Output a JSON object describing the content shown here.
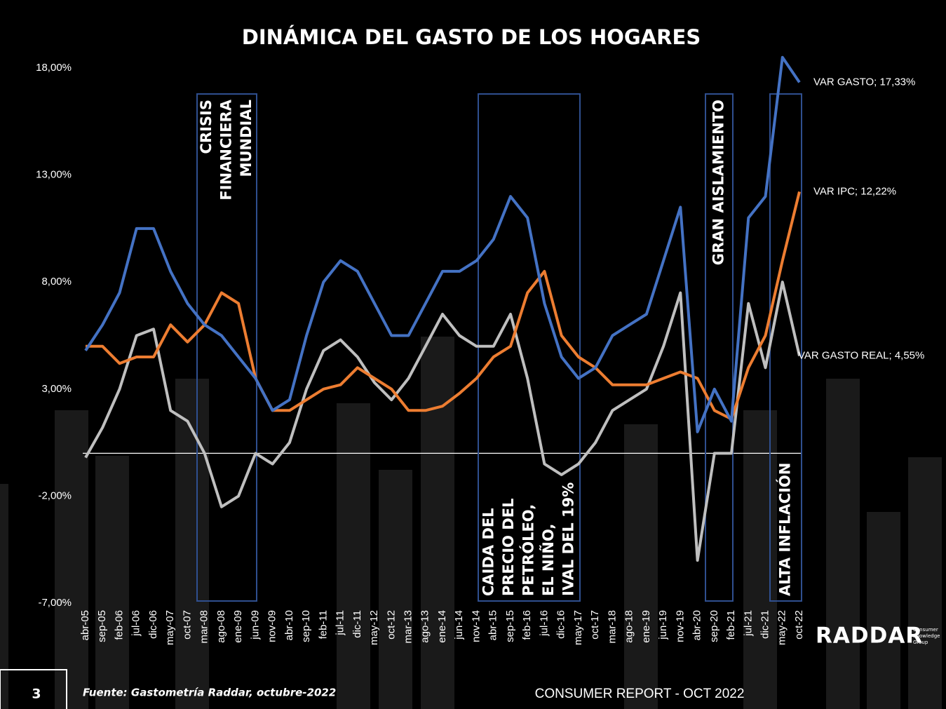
{
  "chart_data": {
    "type": "line",
    "title": "DINÁMICA DEL GASTO DE LOS HOGARES",
    "categories": [
      "abr-05",
      "sep-05",
      "feb-06",
      "jul-06",
      "dic-06",
      "may-07",
      "oct-07",
      "mar-08",
      "ago-08",
      "ene-09",
      "jun-09",
      "nov-09",
      "abr-10",
      "sep-10",
      "feb-11",
      "jul-11",
      "dic-11",
      "may-12",
      "oct-12",
      "mar-13",
      "ago-13",
      "ene-14",
      "jun-14",
      "nov-14",
      "abr-15",
      "sep-15",
      "feb-16",
      "jul-16",
      "dic-16",
      "may-17",
      "oct-17",
      "mar-18",
      "ago-18",
      "ene-19",
      "jun-19",
      "nov-19",
      "abr-20",
      "sep-20",
      "feb-21",
      "jul-21",
      "dic-21",
      "may-22",
      "oct-22"
    ],
    "series": [
      {
        "name": "VAR GASTO",
        "color": "#4472c4",
        "values": [
          4.8,
          6.0,
          7.5,
          10.5,
          10.5,
          8.5,
          7.0,
          6.0,
          5.5,
          4.5,
          3.5,
          2.0,
          2.5,
          5.5,
          8.0,
          9.0,
          8.5,
          7.0,
          5.5,
          5.5,
          7.0,
          8.5,
          8.5,
          9.0,
          10.0,
          12.0,
          11.0,
          7.0,
          4.5,
          3.5,
          4.0,
          5.5,
          6.0,
          6.5,
          9.0,
          11.5,
          1.0,
          3.0,
          1.5,
          11.0,
          12.0,
          18.5,
          17.33
        ],
        "value_labels": [
          null,
          null,
          null,
          null,
          null,
          null,
          null,
          null,
          null,
          null,
          null,
          null,
          null,
          null,
          null,
          null,
          null,
          null,
          null,
          null,
          null,
          null,
          null,
          null,
          null,
          null,
          null,
          null,
          null,
          null,
          null,
          null,
          null,
          null,
          null,
          null,
          null,
          null,
          null,
          null,
          null,
          null,
          "VAR GASTO; 17,33%"
        ]
      },
      {
        "name": "VAR IPC",
        "color": "#ed7d31",
        "values": [
          5.0,
          5.0,
          4.2,
          4.5,
          4.5,
          6.0,
          5.2,
          6.0,
          7.5,
          7.0,
          3.5,
          2.0,
          2.0,
          2.5,
          3.0,
          3.2,
          4.0,
          3.5,
          3.0,
          2.0,
          2.0,
          2.2,
          2.8,
          3.5,
          4.5,
          5.0,
          7.5,
          8.5,
          5.5,
          4.5,
          4.0,
          3.2,
          3.2,
          3.2,
          3.5,
          3.8,
          3.5,
          2.0,
          1.6,
          4.0,
          5.5,
          9.0,
          12.22
        ],
        "value_labels": [
          null,
          null,
          null,
          null,
          null,
          null,
          null,
          null,
          null,
          null,
          null,
          null,
          null,
          null,
          null,
          null,
          null,
          null,
          null,
          null,
          null,
          null,
          null,
          null,
          null,
          null,
          null,
          null,
          null,
          null,
          null,
          null,
          null,
          null,
          null,
          null,
          null,
          null,
          null,
          null,
          null,
          null,
          "VAR IPC; 12,22%"
        ]
      },
      {
        "name": "VAR GASTO REAL",
        "color": "#bfbfbf",
        "values": [
          -0.2,
          1.2,
          3.0,
          5.5,
          5.8,
          2.0,
          1.5,
          0.0,
          -2.5,
          -2.0,
          0.0,
          -0.5,
          0.5,
          3.0,
          4.8,
          5.3,
          4.5,
          3.3,
          2.5,
          3.5,
          5.0,
          6.5,
          5.5,
          5.0,
          5.0,
          6.5,
          3.5,
          -0.5,
          -1.0,
          -0.5,
          0.5,
          2.0,
          2.5,
          3.0,
          5.0,
          7.5,
          -5.0,
          0.0,
          0.0,
          7.0,
          4.0,
          8.0,
          4.55
        ],
        "value_labels": [
          null,
          null,
          null,
          null,
          null,
          null,
          null,
          null,
          null,
          null,
          null,
          null,
          null,
          null,
          null,
          null,
          null,
          null,
          null,
          null,
          null,
          null,
          null,
          null,
          null,
          null,
          null,
          null,
          null,
          null,
          null,
          null,
          null,
          null,
          null,
          null,
          null,
          null,
          null,
          null,
          null,
          null,
          "VAR GASTO REAL; 4,55%"
        ]
      }
    ],
    "ylim": [
      -7,
      18
    ],
    "yticks": [
      {
        "value": -7,
        "label": "-7,00%"
      },
      {
        "value": -2,
        "label": "-2,00%"
      },
      {
        "value": 3,
        "label": "3,00%"
      },
      {
        "value": 8,
        "label": "8,00%"
      },
      {
        "value": 13,
        "label": "13,00%"
      },
      {
        "value": 18,
        "label": "18,00%"
      }
    ],
    "annotations": [
      {
        "lines": [
          "CRISIS",
          "FINANCIERA",
          "MUNDIAL"
        ]
      },
      {
        "lines": [
          "CAIDA DEL",
          "PRECIO DEL",
          "PETRÓLEO,",
          "EL NIÑO,",
          "IVAL DEL 19%"
        ]
      },
      {
        "lines": [
          "GRAN AISLAMIENTO"
        ]
      },
      {
        "lines": [
          "ALTA INFLACIÓN"
        ]
      }
    ]
  },
  "footer": {
    "page": "3",
    "source": "Fuente: Gastometría Raddar, octubre-2022",
    "report": "CONSUMER REPORT - OCT 2022",
    "logo": "RADDAR",
    "logo_sub": [
      "Consumer",
      "Knowledge",
      "Group"
    ]
  }
}
